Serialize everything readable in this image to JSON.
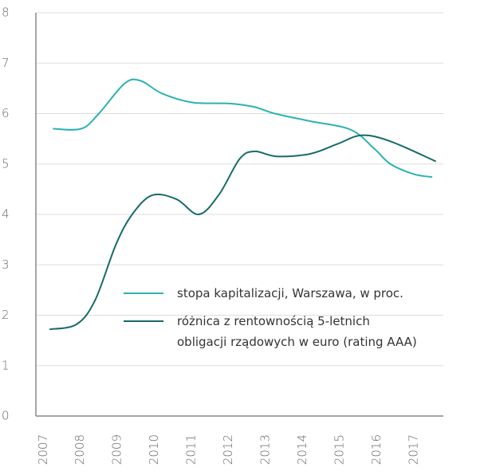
{
  "chart_data": {
    "type": "line",
    "xlim": [
      2006.8,
      2017.8
    ],
    "xticks": [
      2007,
      2008,
      2009,
      2010,
      2011,
      2012,
      2013,
      2014,
      2015,
      2016,
      2017
    ],
    "ylim": [
      0,
      8
    ],
    "yticks": [
      0,
      1,
      2,
      3,
      4,
      5,
      6,
      7,
      8
    ],
    "grid": true,
    "series": [
      {
        "name": "stopa kapitalizacji, Warszawa, w proc.",
        "color": "#2ab3b1",
        "x": [
          2007.26,
          2008.03,
          2008.5,
          2009.2,
          2009.63,
          2010.2,
          2011.03,
          2012.04,
          2012.7,
          2013.25,
          2014.2,
          2015.3,
          2015.94,
          2016.37,
          2017.0,
          2017.5
        ],
        "values": [
          5.7,
          5.7,
          6.0,
          6.6,
          6.65,
          6.4,
          6.22,
          6.2,
          6.13,
          6.0,
          5.85,
          5.68,
          5.3,
          5.0,
          4.8,
          4.74
        ]
      },
      {
        "name": "różnica z rentownością 5-letnich\nobligacji rządowych w euro (rating AAA)",
        "color": "#176b69",
        "x": [
          2007.17,
          2007.9,
          2008.4,
          2008.96,
          2009.4,
          2009.94,
          2010.6,
          2011.2,
          2011.75,
          2012.3,
          2012.7,
          2013.3,
          2014.2,
          2014.95,
          2015.6,
          2016.37,
          2017.6
        ],
        "values": [
          1.72,
          1.82,
          2.3,
          3.4,
          4.0,
          4.38,
          4.3,
          4.0,
          4.4,
          5.1,
          5.25,
          5.15,
          5.2,
          5.4,
          5.57,
          5.45,
          5.05
        ]
      }
    ]
  }
}
